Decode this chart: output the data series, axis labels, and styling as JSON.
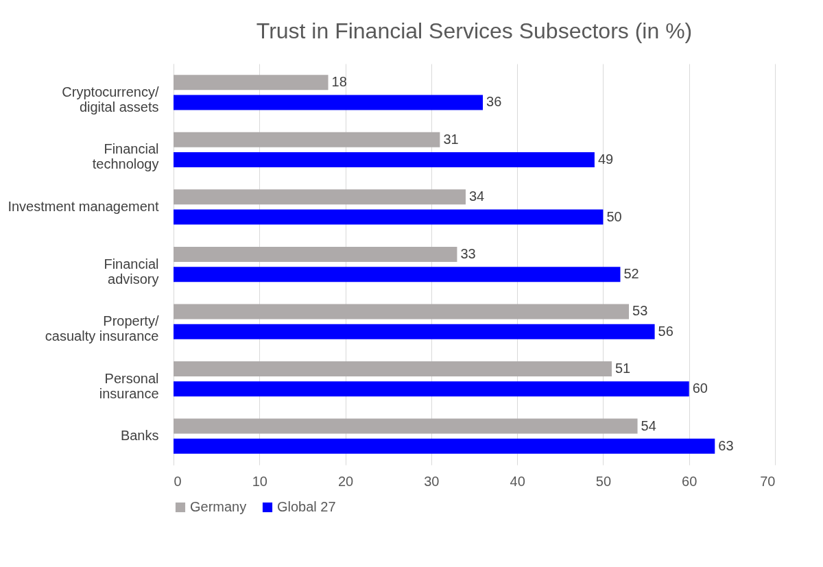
{
  "chart_data": {
    "type": "bar",
    "orientation": "horizontal",
    "title": "Trust in Financial Services Subsectors (in %)",
    "categories": [
      "Cryptocurrency/\ndigital assets",
      "Financial\ntechnology",
      "Investment management",
      "Financial\nadvisory",
      "Property/\ncasualty insurance",
      "Personal\ninsurance",
      "Banks"
    ],
    "series": [
      {
        "name": "Germany",
        "color": "#aeaaaa",
        "values": [
          18,
          31,
          34,
          33,
          53,
          51,
          54
        ]
      },
      {
        "name": "Global 27",
        "color": "#0000ff",
        "values": [
          36,
          49,
          50,
          52,
          56,
          60,
          63
        ]
      }
    ],
    "xlim": [
      0,
      70
    ],
    "xticks": [
      0,
      10,
      20,
      30,
      40,
      50,
      60,
      70
    ],
    "grid": "x",
    "legend": "bottom",
    "data_labels": true
  }
}
